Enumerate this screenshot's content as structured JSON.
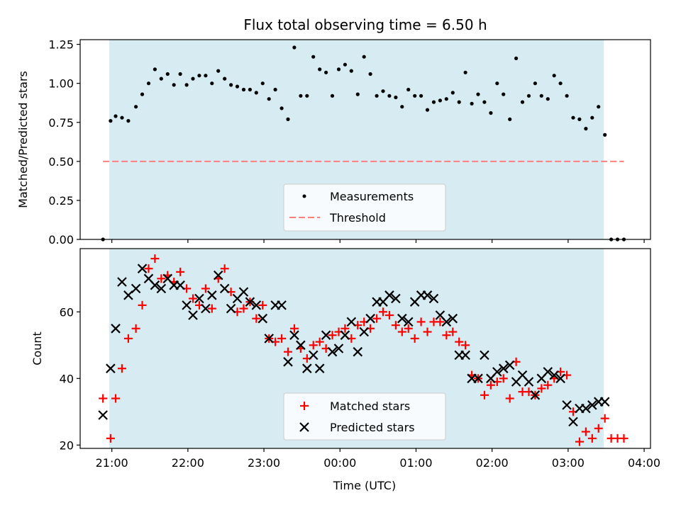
{
  "chart_data": [
    {
      "type": "scatter",
      "title": "Flux total observing time = 6.50 h",
      "ylabel": "Matched/Predicted stars",
      "xlabel": "",
      "ylim": [
        0,
        1.28
      ],
      "yticks": [
        0.0,
        0.25,
        0.5,
        0.75,
        1.0,
        1.25
      ],
      "ytick_labels": [
        "0.00",
        "0.25",
        "0.50",
        "0.75",
        "1.00",
        "1.25"
      ],
      "observing_window": [
        "20:58",
        "03:28"
      ],
      "colors": {
        "window": "#add8e6",
        "points": "#000000",
        "threshold": "#ff7f7f"
      },
      "legend": {
        "placement": "lower-center",
        "entries": [
          "Measurements",
          "Threshold"
        ]
      },
      "series": [
        {
          "name": "Measurements",
          "x": [
            "20:53",
            "20:59",
            "21:03",
            "21:08",
            "21:13",
            "21:19",
            "21:24",
            "21:29",
            "21:34",
            "21:39",
            "21:44",
            "21:49",
            "21:54",
            "21:59",
            "22:04",
            "22:09",
            "22:14",
            "22:19",
            "22:24",
            "22:29",
            "22:34",
            "22:39",
            "22:44",
            "22:49",
            "22:54",
            "22:59",
            "23:04",
            "23:09",
            "23:14",
            "23:19",
            "23:24",
            "23:29",
            "23:34",
            "23:39",
            "23:44",
            "23:49",
            "23:54",
            "23:59",
            "00:04",
            "00:09",
            "00:14",
            "00:19",
            "00:24",
            "00:29",
            "00:34",
            "00:39",
            "00:44",
            "00:49",
            "00:54",
            "00:59",
            "01:04",
            "01:09",
            "01:14",
            "01:19",
            "01:24",
            "01:29",
            "01:34",
            "01:39",
            "01:44",
            "01:49",
            "01:54",
            "01:59",
            "02:04",
            "02:09",
            "02:14",
            "02:19",
            "02:24",
            "02:29",
            "02:34",
            "02:39",
            "02:44",
            "02:49",
            "02:54",
            "02:59",
            "03:04",
            "03:09",
            "03:14",
            "03:19",
            "03:24",
            "03:29",
            "03:34",
            "03:39",
            "03:44"
          ],
          "y": [
            0.0,
            0.76,
            0.79,
            0.78,
            0.76,
            0.85,
            0.93,
            1.0,
            1.09,
            1.03,
            1.06,
            0.99,
            1.06,
            0.99,
            1.03,
            1.05,
            1.05,
            1.0,
            1.08,
            1.03,
            0.99,
            0.98,
            0.96,
            0.96,
            0.94,
            1.0,
            0.9,
            0.96,
            0.84,
            0.77,
            1.23,
            0.92,
            0.92,
            1.17,
            1.09,
            1.07,
            0.92,
            1.09,
            1.12,
            1.08,
            0.93,
            1.17,
            1.06,
            0.92,
            0.95,
            0.92,
            0.91,
            0.85,
            0.96,
            0.92,
            0.92,
            0.83,
            0.88,
            0.89,
            0.9,
            0.94,
            0.88,
            1.07,
            0.87,
            0.93,
            0.88,
            0.81,
            1.0,
            0.93,
            0.77,
            1.16,
            0.88,
            0.92,
            1.0,
            0.92,
            0.9,
            1.05,
            1.0,
            0.92,
            0.78,
            0.77,
            0.71,
            0.78,
            0.85,
            0.67,
            0.0,
            0.0,
            0.0
          ]
        },
        {
          "name": "Threshold",
          "x": [
            "20:53",
            "03:44"
          ],
          "y": [
            0.5,
            0.5
          ]
        }
      ]
    },
    {
      "type": "scatter",
      "title": "",
      "ylabel": "Count",
      "xlabel": "Time (UTC)",
      "ylim": [
        19,
        79
      ],
      "yticks": [
        20,
        40,
        60
      ],
      "ytick_labels": [
        "20",
        "40",
        "60"
      ],
      "xlim": [
        "20:35",
        "04:05"
      ],
      "xticks": [
        "21:00",
        "22:00",
        "23:00",
        "00:00",
        "01:00",
        "02:00",
        "03:00",
        "04:00"
      ],
      "observing_window": [
        "20:58",
        "03:28"
      ],
      "colors": {
        "window": "#add8e6",
        "matched": "#ff0000",
        "predicted": "#000000"
      },
      "legend": {
        "placement": "lower-center",
        "entries": [
          "Matched stars",
          "Predicted stars"
        ]
      },
      "series": [
        {
          "name": "Matched stars",
          "x": [
            "20:53",
            "20:59",
            "21:03",
            "21:08",
            "21:13",
            "21:19",
            "21:24",
            "21:29",
            "21:34",
            "21:39",
            "21:44",
            "21:49",
            "21:54",
            "21:59",
            "22:04",
            "22:09",
            "22:14",
            "22:19",
            "22:24",
            "22:29",
            "22:34",
            "22:39",
            "22:44",
            "22:49",
            "22:54",
            "22:59",
            "23:04",
            "23:09",
            "23:14",
            "23:19",
            "23:24",
            "23:29",
            "23:34",
            "23:39",
            "23:44",
            "23:49",
            "23:54",
            "23:59",
            "00:04",
            "00:09",
            "00:14",
            "00:19",
            "00:24",
            "00:29",
            "00:34",
            "00:39",
            "00:44",
            "00:49",
            "00:54",
            "00:59",
            "01:04",
            "01:09",
            "01:14",
            "01:19",
            "01:24",
            "01:29",
            "01:34",
            "01:39",
            "01:44",
            "01:49",
            "01:54",
            "01:59",
            "02:04",
            "02:09",
            "02:14",
            "02:19",
            "02:24",
            "02:29",
            "02:34",
            "02:39",
            "02:44",
            "02:49",
            "02:54",
            "02:59",
            "03:04",
            "03:09",
            "03:14",
            "03:19",
            "03:24",
            "03:29",
            "03:34",
            "03:39",
            "03:44"
          ],
          "y": [
            34,
            22,
            34,
            43,
            52,
            55,
            62,
            73,
            76,
            70,
            71,
            69,
            72,
            67,
            64,
            62,
            67,
            61,
            70,
            73,
            66,
            60,
            61,
            63,
            58,
            62,
            52,
            51,
            52,
            48,
            55,
            49,
            46,
            50,
            51,
            49,
            53,
            54,
            55,
            52,
            56,
            57,
            55,
            58,
            60,
            59,
            56,
            54,
            55,
            52,
            57,
            54,
            57,
            57,
            53,
            54,
            51,
            50,
            41,
            40,
            35,
            38,
            39,
            40,
            34,
            45,
            36,
            36,
            35,
            37,
            38,
            40,
            42,
            41,
            30,
            21,
            24,
            22,
            25,
            28,
            22,
            22,
            22
          ]
        },
        {
          "name": "Predicted stars",
          "x": [
            "20:53",
            "20:59",
            "21:03",
            "21:08",
            "21:13",
            "21:19",
            "21:24",
            "21:29",
            "21:34",
            "21:39",
            "21:44",
            "21:49",
            "21:54",
            "21:59",
            "22:04",
            "22:09",
            "22:14",
            "22:19",
            "22:24",
            "22:29",
            "22:34",
            "22:39",
            "22:44",
            "22:49",
            "22:54",
            "22:59",
            "23:04",
            "23:09",
            "23:14",
            "23:19",
            "23:24",
            "23:29",
            "23:34",
            "23:39",
            "23:44",
            "23:49",
            "23:54",
            "23:59",
            "00:04",
            "00:09",
            "00:14",
            "00:19",
            "00:24",
            "00:29",
            "00:34",
            "00:39",
            "00:44",
            "00:49",
            "00:54",
            "00:59",
            "01:04",
            "01:09",
            "01:14",
            "01:19",
            "01:24",
            "01:29",
            "01:34",
            "01:39",
            "01:44",
            "01:49",
            "01:54",
            "01:59",
            "02:04",
            "02:09",
            "02:14",
            "02:19",
            "02:24",
            "02:29",
            "02:34",
            "02:39",
            "02:44",
            "02:49",
            "02:54",
            "02:59",
            "03:04",
            "03:09",
            "03:14",
            "03:19",
            "03:24",
            "03:29"
          ],
          "y": [
            29,
            43,
            55,
            69,
            65,
            67,
            73,
            70,
            68,
            67,
            70,
            68,
            68,
            62,
            59,
            64,
            61,
            65,
            71,
            67,
            61,
            64,
            66,
            63,
            62,
            58,
            52,
            62,
            62,
            45,
            53,
            50,
            43,
            47,
            43,
            53,
            48,
            49,
            53,
            57,
            48,
            54,
            58,
            63,
            63,
            65,
            64,
            58,
            57,
            63,
            65,
            65,
            64,
            59,
            57,
            58,
            47,
            47,
            40,
            40,
            47,
            40,
            42,
            43,
            44,
            39,
            41,
            39,
            35,
            40,
            42,
            41,
            40,
            32,
            27,
            31,
            31,
            32,
            33,
            33
          ]
        }
      ]
    }
  ]
}
